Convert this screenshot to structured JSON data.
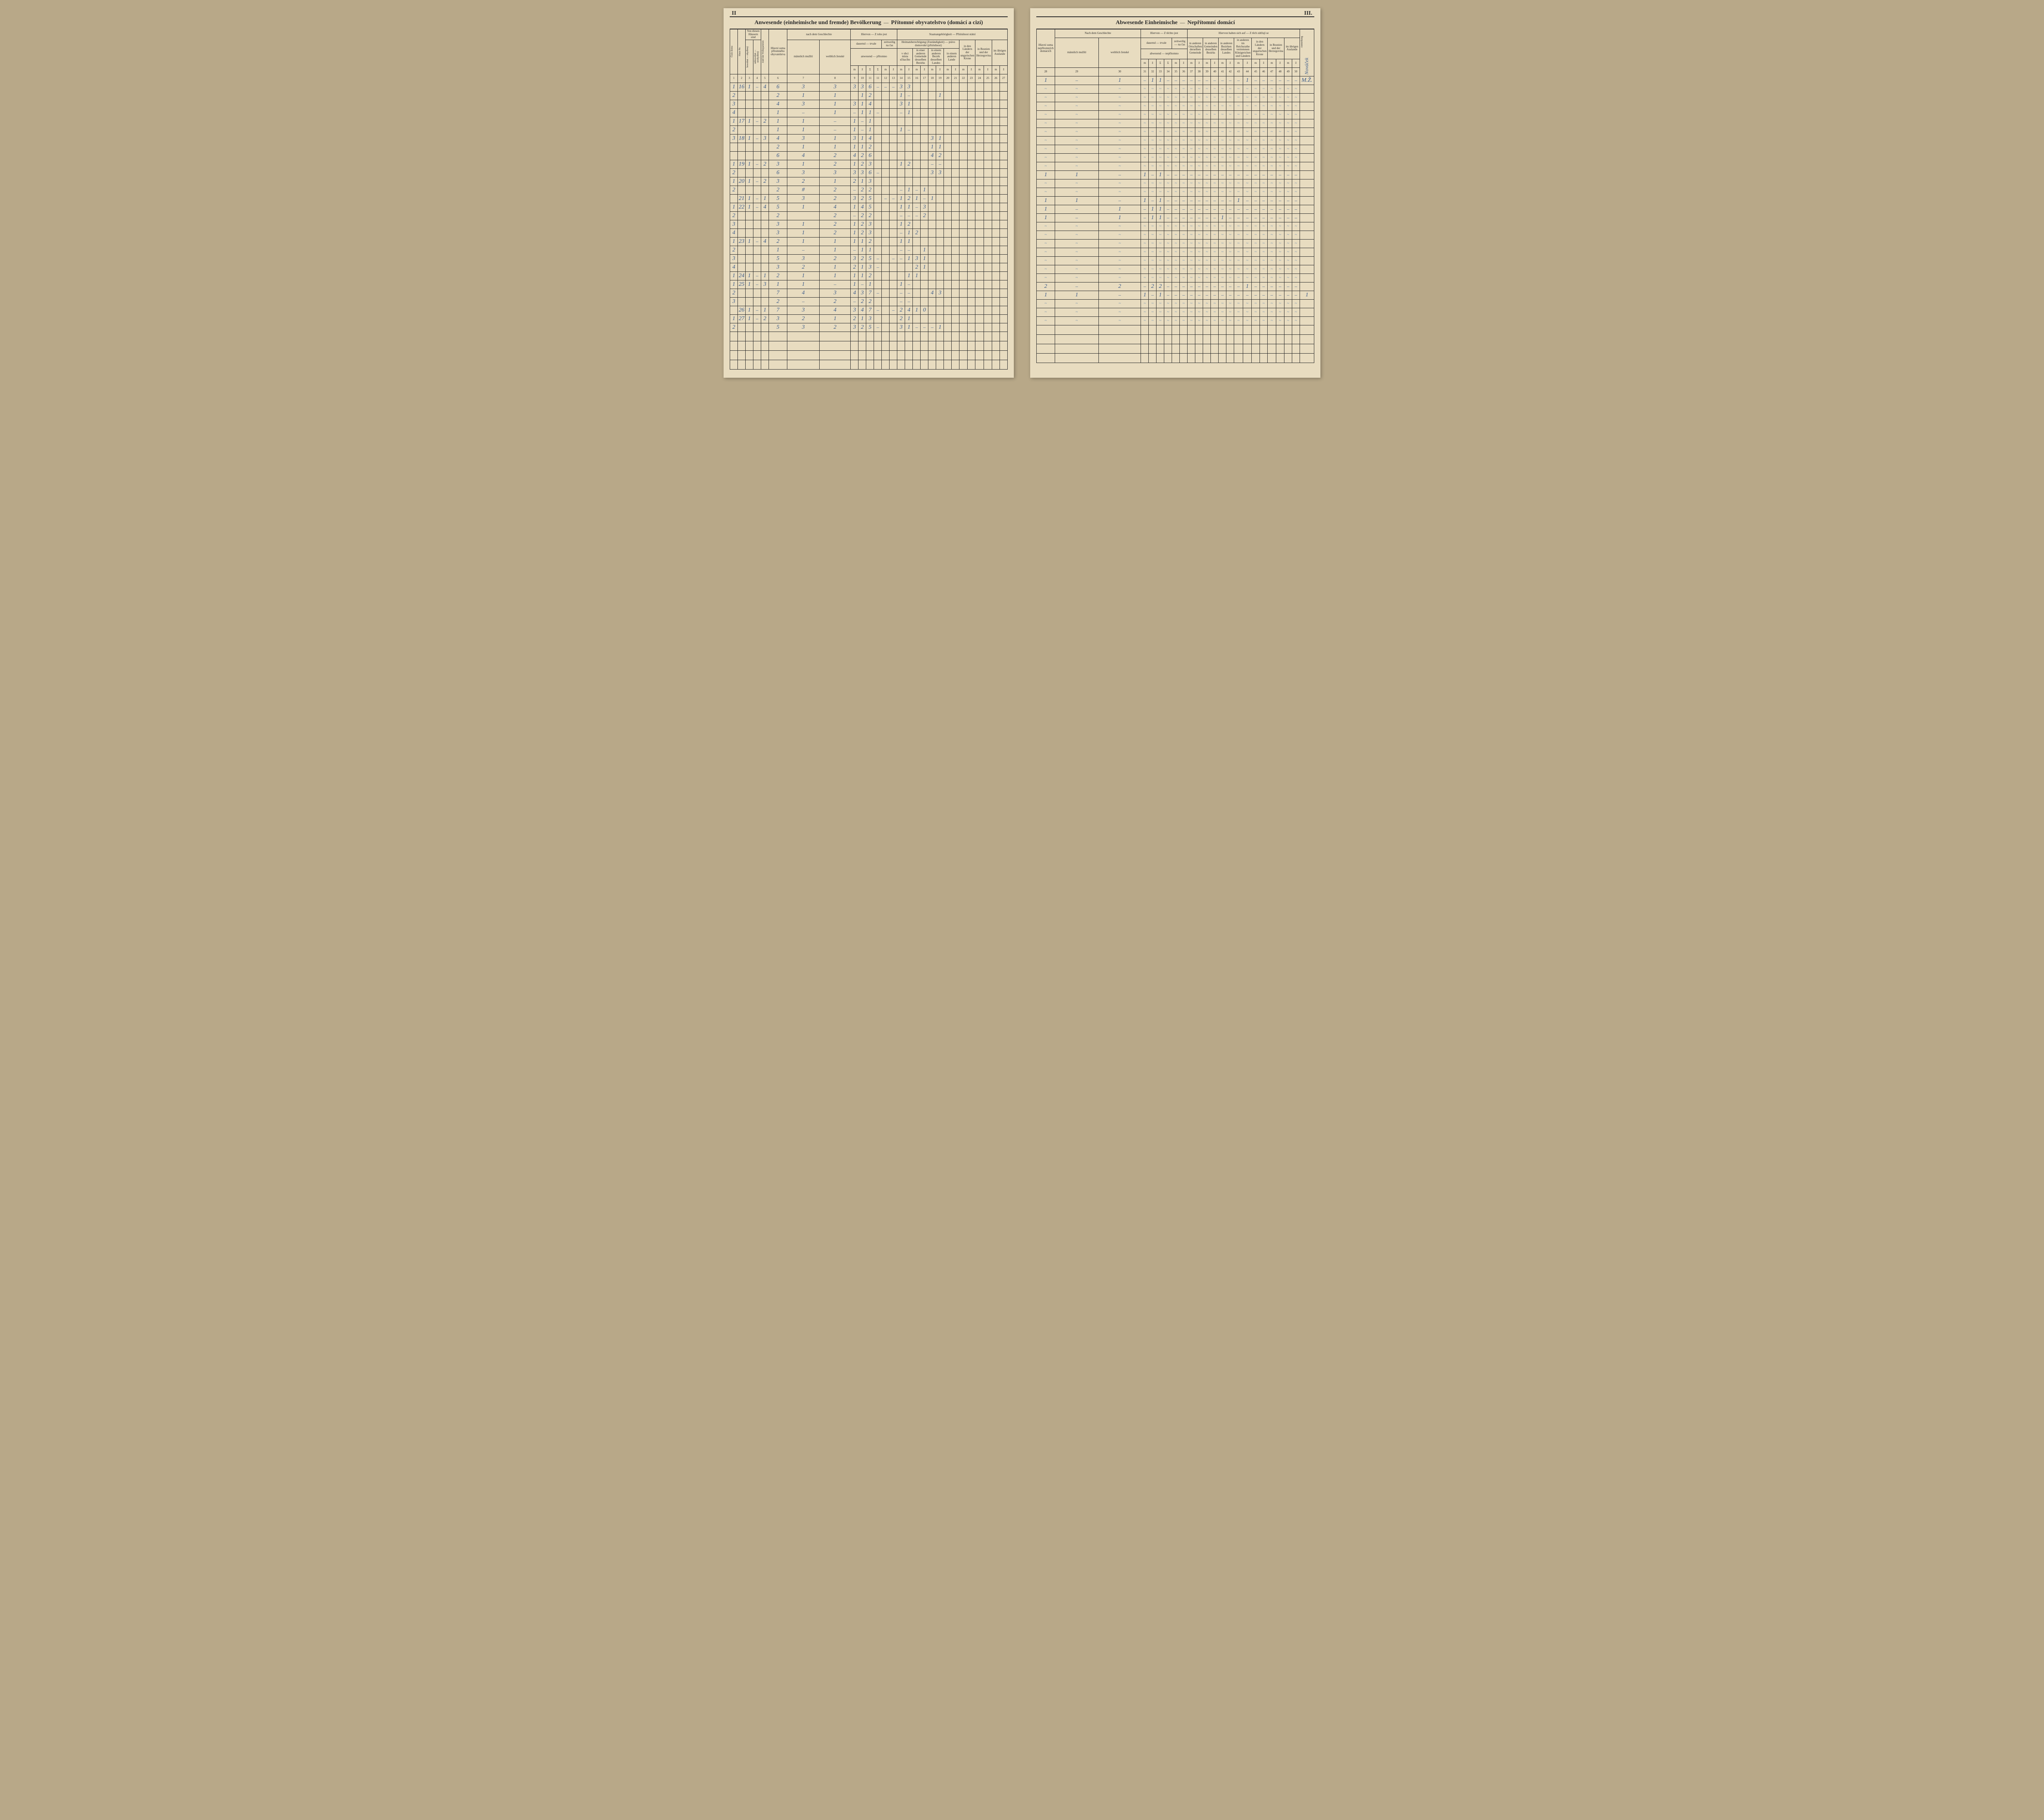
{
  "left_page": {
    "page_number": "II",
    "title_ger": "Anwesende (einheimische und fremde) Bevölkerung",
    "title_cz": "Přítomné obyvatelstvo (domácí a cizí)",
    "header": {
      "col1": "Haus-Nr.",
      "col1_cz": "Číslo domu",
      "col2_top": "Von diesen Häusern sind",
      "col2_cz": "Z těchto domů jsou",
      "col2a": "bewohnt — obydlený",
      "col2b": "unbewohnt — neobydlený",
      "col3": "Zahl der Wohnparteien",
      "col3_cz": "Počet stran obydlených",
      "col4": "Hauptsumme der anwesenden Bevölkerung",
      "col4_cz": "Hlavní suma přítomného obyvatelstva",
      "col5": "nach dem Geschlechte",
      "col5_cz": "dle pohlaví",
      "col5a": "männlich mužští",
      "col5b": "weiblich ženské",
      "col6": "Hiervon — Z toho jest",
      "col6a": "dauernd — trvale",
      "col6b": "zeitweilig na čas",
      "col6_sub": "anwesend — přítomno",
      "col7": "Staatsangehörigkeit — Příslušnost státní",
      "col7a": "Heimatsberechtigung (Zuständigkeit) — právo domovské (příslušnost)",
      "col7a1": "in der Gemeinde des Zählortes",
      "col7a1_cz": "v obci místa sčítacího",
      "col7a2": "in einer anderen Gemeinde desselben Bezirks",
      "col7a3": "in einem anderen Bezirk desselben Landes",
      "col7a4": "in einem anderen Lande",
      "col7b": "in den im Reichsrathe vertretenen Königreichen und Ländern",
      "col7b_cz": "v královstvích a zemích v radě říšské zastoupených",
      "col7c": "in den Ländern der ungarischen Krone",
      "col7d": "in Bosnien und der Herzegovina",
      "col7e": "im übrigen Auslande",
      "col_nums": [
        "1",
        "2",
        "3",
        "4",
        "5",
        "6",
        "7",
        "8",
        "9",
        "10",
        "11",
        "12",
        "13",
        "14",
        "15",
        "16",
        "17",
        "18",
        "19",
        "20",
        "21",
        "22",
        "23",
        "24",
        "25",
        "26",
        "27"
      ]
    },
    "rows": [
      {
        "sub": "1",
        "hn": "16",
        "b": "1",
        "u": "–",
        "wp": "4",
        "sum": "6",
        "m": "3",
        "f": "3",
        "c8": "3",
        "c9": "3",
        "c10": "6",
        "c11": "–",
        "c12": "–",
        "c13": "–",
        "c14": "3",
        "c15": "3"
      },
      {
        "sub": "2",
        "hn": "",
        "b": "",
        "u": "",
        "wp": "",
        "sum": "2",
        "m": "1",
        "f": "1",
        "c8": "",
        "c9": "1",
        "c10": "2",
        "c11": "",
        "c12": "",
        "c13": "",
        "c14": "1",
        "c15": "–",
        "c19": "1"
      },
      {
        "sub": "3",
        "hn": "",
        "b": "",
        "u": "",
        "wp": "",
        "sum": "4",
        "m": "3",
        "f": "1",
        "c8": "3",
        "c9": "1",
        "c10": "4",
        "c11": "",
        "c12": "",
        "c13": "",
        "c14": "3",
        "c15": "1"
      },
      {
        "sub": "4",
        "hn": "",
        "b": "",
        "u": "",
        "wp": "",
        "sum": "1",
        "m": "–",
        "f": "1",
        "c8": "–",
        "c9": "1",
        "c10": "1",
        "c11": "–",
        "c12": "",
        "c13": "",
        "c14": "–",
        "c15": "1"
      },
      {
        "sub": "1",
        "hn": "17",
        "b": "1",
        "u": "–",
        "wp": "2",
        "sum": "1",
        "m": "1",
        "f": "–",
        "c8": "1",
        "c9": "–",
        "c10": "1",
        "c11": "",
        "c12": "",
        "c13": "",
        "c14": "",
        "c15": ""
      },
      {
        "sub": "2",
        "hn": "",
        "b": "",
        "u": "",
        "wp": "",
        "sum": "1",
        "m": "1",
        "f": "–",
        "c8": "1",
        "c9": "–",
        "c10": "1",
        "c11": "",
        "c12": "",
        "c13": "",
        "c14": "1",
        "c15": "–"
      },
      {
        "sub": "3",
        "hn": "18",
        "b": "1",
        "u": "–",
        "wp": "3",
        "sum": "4",
        "m": "3",
        "f": "1",
        "c8": "3",
        "c9": "1",
        "c10": "4",
        "c11": "",
        "c12": "",
        "c13": "",
        "c14": "",
        "c15": "",
        "c18": "3",
        "c19": "1"
      },
      {
        "sub": "",
        "hn": "",
        "b": "",
        "u": "",
        "wp": "",
        "sum": "2",
        "m": "1",
        "f": "1",
        "c8": "1",
        "c9": "1",
        "c10": "2",
        "c11": "",
        "c12": "",
        "c13": "",
        "c14": "",
        "c15": "",
        "c18": "1",
        "c19": "1"
      },
      {
        "sub": "",
        "hn": "",
        "b": "",
        "u": "",
        "wp": "",
        "sum": "6",
        "m": "4",
        "f": "2",
        "c8": "4",
        "c9": "2",
        "c10": "6",
        "c11": "",
        "c12": "",
        "c13": "",
        "c14": "",
        "c15": "",
        "c18": "4",
        "c19": "2"
      },
      {
        "sub": "1",
        "hn": "19",
        "b": "1",
        "u": "–",
        "wp": "2",
        "sum": "3",
        "m": "1",
        "f": "2",
        "c8": "1",
        "c9": "2",
        "c10": "3",
        "c11": "",
        "c12": "",
        "c13": "",
        "c14": "1",
        "c15": "2",
        "c18": "–",
        "c19": "–"
      },
      {
        "sub": "2",
        "hn": "",
        "b": "",
        "u": "",
        "wp": "",
        "sum": "6",
        "m": "3",
        "f": "3",
        "c8": "3",
        "c9": "3",
        "c10": "6",
        "c11": "–",
        "c12": "",
        "c13": "",
        "c14": "",
        "c15": "",
        "c18": "3",
        "c19": "3"
      },
      {
        "sub": "1",
        "hn": "20",
        "b": "1",
        "u": "–",
        "wp": "2",
        "sum": "3",
        "m": "2",
        "f": "1",
        "c8": "2",
        "c9": "1",
        "c10": "3",
        "c11": "",
        "c12": "",
        "c13": "",
        "c14": "",
        "c15": ""
      },
      {
        "sub": "2",
        "hn": "",
        "b": "",
        "u": "",
        "wp": "",
        "sum": "2",
        "m": "#",
        "f": "2",
        "c8": "–",
        "c9": "2",
        "c10": "2",
        "c11": "",
        "c12": "",
        "c13": "",
        "c14": "–",
        "c15": "1",
        "c16": "–",
        "c17": "1"
      },
      {
        "sub": "",
        "hn": "21",
        "b": "1",
        "u": "–",
        "wp": "1",
        "sum": "5",
        "m": "3",
        "f": "2",
        "c8": "3",
        "c9": "2",
        "c10": "5",
        "c11": "",
        "c12": "–",
        "c13": "–",
        "c14": "1",
        "c15": "2",
        "c16": "1",
        "c17": "–",
        "c18": "1"
      },
      {
        "sub": "1",
        "hn": "22",
        "b": "1",
        "u": "–",
        "wp": "4",
        "sum": "5",
        "m": "1",
        "f": "4",
        "c8": "1",
        "c9": "4",
        "c10": "5",
        "c11": "",
        "c12": "",
        "c13": "",
        "c14": "1",
        "c15": "1",
        "c16": "–",
        "c17": "3"
      },
      {
        "sub": "2",
        "hn": "",
        "b": "",
        "u": "",
        "wp": "",
        "sum": "2",
        "m": "",
        "f": "2",
        "c8": "–",
        "c9": "2",
        "c10": "2",
        "c11": "",
        "c12": "",
        "c13": "",
        "c14": "–",
        "c15": "–",
        "c16": "–",
        "c17": "2"
      },
      {
        "sub": "3",
        "hn": "",
        "b": "",
        "u": "",
        "wp": "",
        "sum": "3",
        "m": "1",
        "f": "2",
        "c8": "1",
        "c9": "2",
        "c10": "3",
        "c11": "",
        "c12": "",
        "c13": "",
        "c14": "1",
        "c15": "2",
        "c16": "",
        "c17": ""
      },
      {
        "sub": "4",
        "hn": "",
        "b": "",
        "u": "",
        "wp": "",
        "sum": "3",
        "m": "1",
        "f": "2",
        "c8": "1",
        "c9": "2",
        "c10": "3",
        "c11": "",
        "c12": "",
        "c13": "",
        "c14": "–",
        "c15": "1",
        "c16": "2",
        "c17": ""
      },
      {
        "sub": "1",
        "hn": "23",
        "b": "1",
        "u": "–",
        "wp": "4",
        "sum": "2",
        "m": "1",
        "f": "1",
        "c8": "1",
        "c9": "1",
        "c10": "2",
        "c11": "",
        "c12": "",
        "c13": "",
        "c14": "1",
        "c15": "1",
        "c16": "",
        "c17": ""
      },
      {
        "sub": "2",
        "hn": "",
        "b": "",
        "u": "",
        "wp": "",
        "sum": "1",
        "m": "–",
        "f": "1",
        "c8": "–",
        "c9": "1",
        "c10": "1",
        "c11": "",
        "c12": "",
        "c13": "",
        "c14": "–",
        "c15": "–",
        "c16": "",
        "c17": "1"
      },
      {
        "sub": "3",
        "hn": "",
        "b": "",
        "u": "",
        "wp": "",
        "sum": "5",
        "m": "3",
        "f": "2",
        "c8": "3",
        "c9": "2",
        "c10": "5",
        "c11": "–",
        "c12": "",
        "c13": "–",
        "c14": "–",
        "c15": "1",
        "c16": "3",
        "c17": "1"
      },
      {
        "sub": "4",
        "hn": "",
        "b": "",
        "u": "",
        "wp": "",
        "sum": "3",
        "m": "2",
        "f": "1",
        "c8": "2",
        "c9": "1",
        "c10": "3",
        "c11": "–",
        "c12": "",
        "c13": "",
        "c14": "",
        "c15": "",
        "c16": "2",
        "c17": "1"
      },
      {
        "sub": "1",
        "hn": "24",
        "b": "1",
        "u": "–",
        "wp": "1",
        "sum": "2",
        "m": "1",
        "f": "1",
        "c8": "1",
        "c9": "1",
        "c10": "2",
        "c11": "",
        "c12": "",
        "c13": "",
        "c14": "",
        "c15": "1",
        "c16": "1",
        "c17": ""
      },
      {
        "sub": "1",
        "hn": "25",
        "b": "1",
        "u": "–",
        "wp": "3",
        "sum": "1",
        "m": "1",
        "f": "–",
        "c8": "1",
        "c9": "–",
        "c10": "1",
        "c11": "",
        "c12": "",
        "c13": "",
        "c14": "1",
        "c15": "–",
        "c16": "",
        "c17": ""
      },
      {
        "sub": "2",
        "hn": "",
        "b": "",
        "u": "",
        "wp": "",
        "sum": "7",
        "m": "4",
        "f": "3",
        "c8": "4",
        "c9": "3",
        "c10": "7",
        "c11": "–",
        "c12": "",
        "c13": "",
        "c14": "–",
        "c15": "–",
        "c16": "",
        "c17": "",
        "c18": "4",
        "c19": "3"
      },
      {
        "sub": "3",
        "hn": "",
        "b": "",
        "u": "",
        "wp": "",
        "sum": "2",
        "m": "–",
        "f": "2",
        "c8": "–",
        "c9": "2",
        "c10": "2",
        "c11": "",
        "c12": "",
        "c13": "",
        "c14": "–",
        "c15": "–",
        "c16": "",
        "c17": ""
      },
      {
        "sub": "",
        "hn": "26",
        "b": "1",
        "u": "–",
        "wp": "1",
        "sum": "7",
        "m": "3",
        "f": "4",
        "c8": "3",
        "c9": "4",
        "c10": "7",
        "c11": "–",
        "c12": "",
        "c13": "–",
        "c14": "2",
        "c15": "4",
        "c16": "1",
        "c17": "0"
      },
      {
        "sub": "1",
        "hn": "27",
        "b": "1",
        "u": "–",
        "wp": "2",
        "sum": "3",
        "m": "2",
        "f": "1",
        "c8": "2",
        "c9": "1",
        "c10": "3",
        "c11": "",
        "c12": "",
        "c13": "",
        "c14": "2",
        "c15": "1",
        "c16": "",
        "c17": ""
      },
      {
        "sub": "2",
        "hn": "",
        "b": "",
        "u": "",
        "wp": "",
        "sum": "5",
        "m": "3",
        "f": "2",
        "c8": "3",
        "c9": "2",
        "c10": "5",
        "c11": "–",
        "c12": "",
        "c13": "",
        "c14": "3",
        "c15": "1",
        "c16": "–",
        "c17": "–",
        "c18": "–",
        "c19": "1"
      }
    ]
  },
  "right_page": {
    "page_number": "III.",
    "title_ger": "Abwesende Einheimische",
    "title_cz": "Nepřítomní domácí",
    "header": {
      "col1": "Hauptsumme der abwesenden Einheimischen",
      "col1_cz": "Hlavní suma nepřítomných domácích",
      "col2": "Nach dem Geschlechte",
      "col2_cz": "Dle pohlaví",
      "col2a": "männlich mužští",
      "col2b": "weiblich ženské",
      "col3": "Hiervon — Z těchto jest",
      "col3a": "dauernd — trvale",
      "col3b": "zeitweilig — na čas",
      "col3_sub": "abwesend — nepřítomno",
      "col4": "Hiervon halten sich auf — Z těch zdržují se",
      "col4a": "in anderen Ortschaften derselben Gemeinde",
      "col4b": "in anderen Gemeinden desselben Bezirks",
      "col4c": "in anderen Bezirken desselben Landes",
      "col4d": "in anderen im Reichsrathe vertretenen Königreichen und Ländern",
      "col4e": "in den Ländern der ungarischen Krone",
      "col4f": "in Bosnien und der Herzegovina",
      "col4g": "im übrigen Auslande",
      "col5": "Anmerkung",
      "col5_cz": "Poznamenání",
      "col_nums": [
        "28",
        "29",
        "30",
        "31",
        "32",
        "33",
        "34",
        "35",
        "36",
        "37",
        "38",
        "39",
        "40",
        "41",
        "42",
        "43",
        "44",
        "45",
        "46",
        "47",
        "48",
        "49",
        "50"
      ],
      "signature": "Nováček"
    },
    "rows": [
      {
        "c28": "1",
        "c29": "–",
        "c30": "1",
        "c31": "–",
        "c32": "1",
        "c33": "1",
        "c43": "–",
        "c44": "1",
        "remark": "M.Ž."
      },
      {
        "c28": "",
        "c29": "",
        "c30": ""
      },
      {
        "c28": "",
        "c29": "",
        "c30": ""
      },
      {
        "c28": "",
        "c29": "",
        "c30": ""
      },
      {
        "c28": "",
        "c29": "",
        "c30": ""
      },
      {
        "c28": "",
        "c29": "",
        "c30": ""
      },
      {
        "c28": "",
        "c29": "",
        "c30": ""
      },
      {
        "c28": "",
        "c29": "",
        "c30": ""
      },
      {
        "c28": "",
        "c29": "",
        "c30": ""
      },
      {
        "c28": "",
        "c29": "",
        "c30": ""
      },
      {
        "c28": "",
        "c29": "",
        "c30": ""
      },
      {
        "c28": "1",
        "c29": "1",
        "c30": "–",
        "c31": "1",
        "c32": "–",
        "c33": "1"
      },
      {
        "c28": "",
        "c29": "",
        "c30": ""
      },
      {
        "c28": "",
        "c29": "",
        "c30": ""
      },
      {
        "c28": "1",
        "c29": "1",
        "c30": "–",
        "c31": "1",
        "c32": "–",
        "c33": "1",
        "c43": "1"
      },
      {
        "c28": "1",
        "c29": "–",
        "c30": "1",
        "c31": "",
        "c32": "1",
        "c33": "1"
      },
      {
        "c28": "1",
        "c29": "–",
        "c30": "1",
        "c31": "–",
        "c32": "1",
        "c33": "1",
        "c41": "1"
      },
      {
        "c28": "",
        "c29": "",
        "c30": ""
      },
      {
        "c28": "",
        "c29": "",
        "c30": ""
      },
      {
        "c28": "",
        "c29": "",
        "c30": ""
      },
      {
        "c28": "",
        "c29": "",
        "c30": ""
      },
      {
        "c28": "",
        "c29": "",
        "c30": ""
      },
      {
        "c28": "",
        "c29": "",
        "c30": ""
      },
      {
        "c28": "",
        "c29": "",
        "c30": ""
      },
      {
        "c28": "2",
        "c29": "–",
        "c30": "2",
        "c31": "",
        "c32": "2",
        "c33": "2",
        "c40": "",
        "c41": "–",
        "c42": "",
        "c43": "–",
        "c44": "1",
        "c45": "–"
      },
      {
        "c28": "1",
        "c29": "1",
        "c30": "–",
        "c31": "1",
        "c32": "–",
        "c33": "1",
        "remark": "1"
      },
      {
        "c28": "",
        "c29": "",
        "c30": ""
      },
      {
        "c28": "",
        "c29": "",
        "c30": ""
      },
      {
        "c28": "",
        "c29": "",
        "c30": ""
      }
    ]
  },
  "colors": {
    "paper": "#e8dcc0",
    "ink": "#2a2a2a",
    "handwriting": "#3a5a8a",
    "background": "#b8a888"
  }
}
